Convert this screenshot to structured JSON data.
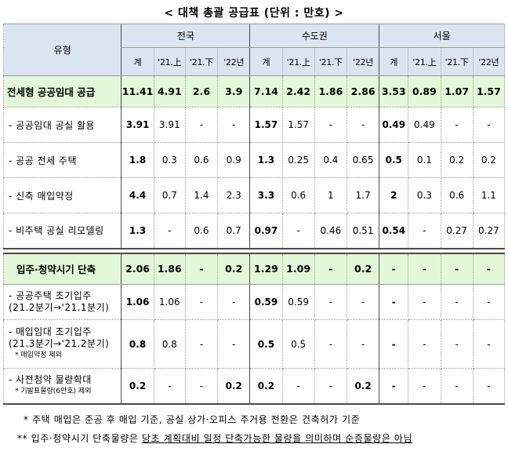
{
  "title": "< 대책 총괄 공급표 (단위 : 만호) >",
  "header": {
    "type_label": "유형",
    "groups": [
      "전국",
      "수도권",
      "서울"
    ],
    "sub": [
      "계",
      "'21.上",
      "'21.下",
      "'22년"
    ]
  },
  "rows": {
    "r1": {
      "label": "전세형 공공임대 공급",
      "v": [
        "11.41",
        "4.91",
        "2.6",
        "3.9",
        "7.14",
        "2.42",
        "1.86",
        "2.86",
        "3.53",
        "0.89",
        "1.07",
        "1.57"
      ]
    },
    "r2": {
      "label": "- 공공임대 공실 활용",
      "v": [
        "3.91",
        "3.91",
        "-",
        "-",
        "1.57",
        "1.57",
        "-",
        "-",
        "0.49",
        "0.49",
        "-",
        "-"
      ]
    },
    "r3": {
      "label": "- 공공 전세 주택",
      "v": [
        "1.8",
        "0.3",
        "0.6",
        "0.9",
        "1.3",
        "0.25",
        "0.4",
        "0.65",
        "0.5",
        "0.1",
        "0.2",
        "0.2"
      ]
    },
    "r4": {
      "label": "- 신축 매입약정",
      "v": [
        "4.4",
        "0.7",
        "1.4",
        "2.3",
        "3.3",
        "0.6",
        "1",
        "1.7",
        "2",
        "0.3",
        "0.6",
        "1.1"
      ]
    },
    "r5": {
      "label": "- 비주택 공실 리모델링",
      "v": [
        "1.3",
        "-",
        "0.6",
        "0.7",
        "0.97",
        "-",
        "0.46",
        "0.51",
        "0.54",
        "-",
        "0.27",
        "0.27"
      ]
    },
    "r6": {
      "label": "입주·청약시기 단축",
      "v": [
        "2.06",
        "1.86",
        "-",
        "0.2",
        "1.29",
        "1.09",
        "-",
        "0.2",
        "-",
        "-",
        "-",
        "-"
      ]
    },
    "r7": {
      "label1": "- 공공주택 조기입주",
      "label2": "(21.2분기→'21.1분기)",
      "v": [
        "1.06",
        "1.06",
        "-",
        "-",
        "0.59",
        "0.59",
        "-",
        "-",
        "-",
        "-",
        "-",
        "-"
      ]
    },
    "r8": {
      "label1": "- 매입임대 조기입주",
      "label2": "(21.3분기→'21.2분기)",
      "label3": "* 매입약정 제외",
      "v": [
        "0.8",
        "0.8",
        "-",
        "-",
        "0.5",
        "0.5",
        "-",
        "-",
        "-",
        "-",
        "-",
        "-"
      ]
    },
    "r9": {
      "label1": "- 사전청약 물량확대",
      "label2": "* 기발표물량(6만호) 제외",
      "v": [
        "0.2",
        "-",
        "-",
        "0.2",
        "0.2",
        "-",
        "-",
        "0.2",
        "-",
        "-",
        "-",
        "-"
      ]
    }
  },
  "footnotes": {
    "fn1": "* 주택 매입은 준공 후 매입 기준, 공실 상가·오피스 주거용 전환은 건축허가 기준",
    "fn2_pre": "** 입주·청약시기 단축물량은 ",
    "fn2_ul": "당초 계획대비 일정 단축가능한 물량을 의미하며 순증물량은 아님"
  }
}
